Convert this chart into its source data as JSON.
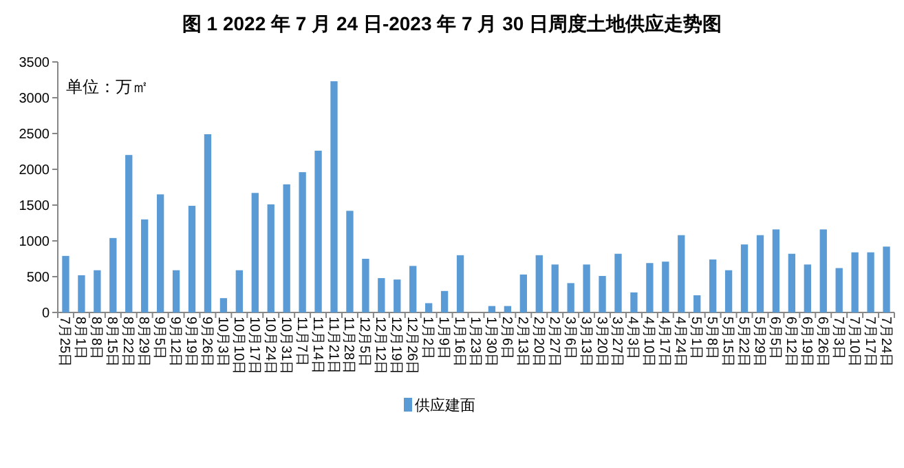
{
  "chart_data": {
    "type": "bar",
    "title": "图 1   2022 年 7 月 24 日-2023 年 7 月 30 日周度土地供应走势图",
    "annotations": [
      "单位：万㎡"
    ],
    "categories": [
      "7月25日",
      "8月1日",
      "8月8日",
      "8月15日",
      "8月22日",
      "8月29日",
      "9月5日",
      "9月12日",
      "9月19日",
      "9月26日",
      "10月3日",
      "10月10日",
      "10月17日",
      "10月24日",
      "10月31日",
      "11月7日",
      "11月14日",
      "11月21日",
      "11月28日",
      "12月5日",
      "12月12日",
      "12月19日",
      "12月26日",
      "1月2日",
      "1月9日",
      "1月16日",
      "1月23日",
      "1月30日",
      "2月6日",
      "2月13日",
      "2月20日",
      "2月27日",
      "3月6日",
      "3月13日",
      "3月20日",
      "3月27日",
      "4月3日",
      "4月10日",
      "4月17日",
      "4月24日",
      "5月1日",
      "5月8日",
      "5月15日",
      "5月22日",
      "5月29日",
      "6月5日",
      "6月12日",
      "6月19日",
      "6月26日",
      "7月3日",
      "7月10日",
      "7月17日",
      "7月24日"
    ],
    "series": [
      {
        "name": "供应建面",
        "color": "#5b9bd5",
        "values": [
          790,
          520,
          590,
          1040,
          2200,
          1300,
          1650,
          590,
          1490,
          2490,
          200,
          590,
          1670,
          1510,
          1790,
          1960,
          2260,
          3230,
          1420,
          750,
          480,
          460,
          650,
          130,
          300,
          800,
          0,
          90,
          90,
          530,
          800,
          670,
          410,
          670,
          510,
          820,
          280,
          690,
          710,
          1080,
          240,
          740,
          590,
          950,
          1080,
          1160,
          820,
          670,
          1160,
          620,
          840,
          840,
          920
        ]
      }
    ],
    "ylim": [
      0,
      3500
    ],
    "yticks": [
      0,
      500,
      1000,
      1500,
      2000,
      2500,
      3000,
      3500
    ],
    "grid": false,
    "legend": "bottom"
  }
}
